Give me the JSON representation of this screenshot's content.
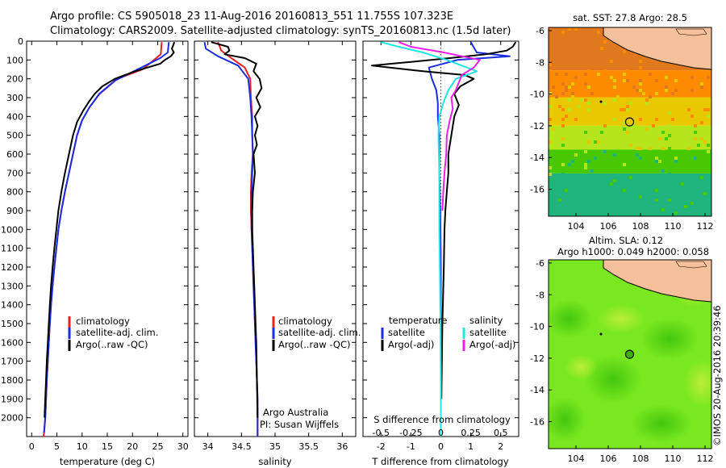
{
  "title": {
    "line1": "Argo profile: CS 5905018_23 11-Aug-2016 20160813_551 11.755S 107.323E",
    "line2": "Climatology: CARS2009. Satellite-adjusted climatology: synTS_20160813.nc (1.5d later)"
  },
  "colors": {
    "climatology": "#e82020",
    "satellite": "#1a2ee0",
    "argo": "#000000",
    "sal_satellite": "#22e4e4",
    "sal_argo": "#e820e8"
  },
  "chart_data": [
    {
      "type": "line",
      "id": "temperature",
      "xlabel": "temperature (deg C)",
      "xlim": [
        -1,
        31
      ],
      "ylim": [
        2100,
        0
      ],
      "xticks": [
        0,
        5,
        10,
        15,
        20,
        25,
        30
      ],
      "yticks": [
        0,
        100,
        200,
        300,
        400,
        500,
        600,
        700,
        800,
        900,
        1000,
        1100,
        1200,
        1300,
        1400,
        1500,
        1600,
        1700,
        1800,
        1900,
        2000
      ],
      "legend": {
        "placement": "lower-center",
        "entries": [
          "climatology",
          "satellite-adj. clim.",
          "Argo(..raw -QC)"
        ]
      },
      "series": [
        {
          "name": "climatology",
          "color": "#e82020",
          "x": [
            25.8,
            25.6,
            22,
            17,
            13.5,
            11.5,
            10,
            9,
            8.2,
            7.4,
            6.6,
            5.9,
            5.3,
            4.9,
            4.5,
            4.15,
            3.85,
            3.6,
            3.4,
            3.2,
            3.0,
            2.85,
            2.7,
            2.55,
            2.45,
            2.35
          ],
          "y": [
            5,
            70,
            150,
            200,
            280,
            350,
            420,
            500,
            600,
            700,
            800,
            900,
            1000,
            1100,
            1200,
            1300,
            1400,
            1500,
            1600,
            1700,
            1800,
            1900,
            2000,
            2050,
            2080,
            2100
          ]
        },
        {
          "name": "satellite-adj. clim.",
          "color": "#1a2ee0",
          "x": [
            27.2,
            27,
            25.5,
            21,
            16.5,
            13.4,
            11.5,
            10,
            9,
            8.2,
            7.4,
            6.6,
            5.9,
            5.3,
            4.9,
            4.5,
            4.15,
            3.85,
            3.6,
            3.4,
            3.2,
            3.0,
            2.85,
            2.7,
            2.55,
            2.45
          ],
          "y": [
            5,
            60,
            90,
            150,
            210,
            280,
            350,
            420,
            500,
            600,
            700,
            800,
            900,
            1000,
            1100,
            1200,
            1300,
            1400,
            1500,
            1600,
            1700,
            1800,
            1900,
            2000,
            2050,
            2080
          ]
        },
        {
          "name": "Argo(..raw -QC)",
          "color": "#000000",
          "x": [
            28.3,
            28.1,
            27.8,
            28.2,
            27.6,
            26.4,
            25.5,
            20.5,
            16.5,
            14,
            12.5,
            11.4,
            10.2,
            9,
            8.2,
            7.4,
            6.6,
            5.9,
            5.3,
            4.9,
            4.5,
            4.15,
            3.85,
            3.6,
            3.4,
            3.2,
            3.0,
            2.85,
            2.7,
            2.55
          ],
          "y": [
            5,
            20,
            40,
            60,
            80,
            100,
            120,
            160,
            200,
            240,
            280,
            320,
            370,
            430,
            500,
            600,
            700,
            800,
            900,
            1000,
            1100,
            1200,
            1300,
            1400,
            1500,
            1600,
            1700,
            1800,
            1900,
            2000
          ]
        }
      ]
    },
    {
      "type": "line",
      "id": "salinity",
      "xlabel": "salinity",
      "xlim": [
        33.8,
        36.2
      ],
      "ylim": [
        2100,
        0
      ],
      "xticks": [
        34,
        34.5,
        35,
        35.5,
        36
      ],
      "legend": {
        "placement": "lower-right",
        "entries": [
          "climatology",
          "satellite-adj. clim.",
          "Argo(..raw -QC)"
        ]
      },
      "annotation": [
        "Argo Australia",
        "PI: Susan Wijffels"
      ],
      "series": [
        {
          "name": "climatology",
          "color": "#e82020",
          "x": [
            34.15,
            34.2,
            34.35,
            34.55,
            34.63,
            34.64,
            34.66,
            34.66,
            34.67,
            34.65,
            34.64,
            34.64,
            34.65,
            34.66,
            34.67,
            34.68,
            34.69,
            34.7,
            34.71,
            34.72,
            34.73,
            34.74,
            34.74
          ],
          "y": [
            5,
            50,
            90,
            140,
            200,
            300,
            400,
            500,
            600,
            700,
            800,
            900,
            1000,
            1100,
            1200,
            1300,
            1400,
            1500,
            1600,
            1700,
            1800,
            1900,
            2100
          ]
        },
        {
          "name": "satellite-adj. clim.",
          "color": "#1a2ee0",
          "x": [
            33.95,
            33.97,
            34.15,
            34.45,
            34.6,
            34.63,
            34.65,
            34.66,
            34.67,
            34.66,
            34.65,
            34.65,
            34.65,
            34.66,
            34.67,
            34.68,
            34.69,
            34.7,
            34.71,
            34.72,
            34.73,
            34.74,
            34.74
          ],
          "y": [
            5,
            40,
            80,
            130,
            200,
            300,
            400,
            500,
            600,
            700,
            800,
            900,
            1000,
            1100,
            1200,
            1300,
            1400,
            1500,
            1600,
            1700,
            1800,
            1900,
            2100
          ]
        },
        {
          "name": "Argo(..raw -QC)",
          "color": "#000000",
          "x": [
            34.05,
            34.3,
            34.32,
            34.25,
            34.55,
            34.72,
            34.68,
            34.77,
            34.8,
            34.72,
            34.78,
            34.7,
            34.74,
            34.7,
            34.73,
            34.68,
            34.7,
            34.67,
            34.66,
            34.66,
            34.67,
            34.68,
            34.69,
            34.7,
            34.71,
            34.72,
            34.73,
            34.74
          ],
          "y": [
            5,
            30,
            50,
            70,
            90,
            120,
            160,
            200,
            250,
            300,
            350,
            400,
            450,
            500,
            550,
            600,
            700,
            800,
            900,
            1000,
            1100,
            1200,
            1300,
            1400,
            1500,
            1600,
            1800,
            2000
          ]
        }
      ]
    },
    {
      "type": "line",
      "id": "difference",
      "xlabel": "T difference from climatology",
      "xlabel_top": "S difference from climatology",
      "xlim": [
        -2.6,
        2.6
      ],
      "ylim": [
        2100,
        0
      ],
      "xticks": [
        -2,
        -1,
        0,
        1,
        2
      ],
      "xticks_top": [
        "-0.5",
        "-0.25",
        "0",
        "0.25",
        "0.5"
      ],
      "legend": {
        "placement": "lower-center",
        "headers": [
          "temperature",
          "salinity"
        ],
        "entries": [
          "satellite",
          "Argo(-adj)",
          "satellite",
          "Argo(-adj)"
        ]
      },
      "series": [
        {
          "name": "satellite",
          "quantity": "temperature",
          "color": "#1a2ee0",
          "x": [
            1.0,
            1.2,
            2.3,
            0.55,
            -0.4,
            -0.3,
            -0.15,
            -0.1,
            -0.1,
            -0.05,
            -0.05,
            -0.02,
            0,
            0,
            0,
            0
          ],
          "y": [
            5,
            60,
            80,
            100,
            140,
            200,
            260,
            330,
            400,
            500,
            700,
            900,
            1200,
            1500,
            1800,
            2100
          ]
        },
        {
          "name": "Argo(-adj)",
          "quantity": "temperature",
          "color": "#000000",
          "x": [
            2.5,
            2.4,
            2.2,
            1.5,
            0.3,
            -1.0,
            -2.3,
            -0.6,
            0.8,
            1.1,
            0.65,
            0.45,
            0.6,
            0.45,
            0.35,
            0.25,
            0.25,
            0.2,
            0.15,
            0.12,
            0.1,
            0.05,
            0.02
          ],
          "y": [
            5,
            30,
            50,
            70,
            90,
            110,
            130,
            160,
            180,
            200,
            240,
            280,
            340,
            400,
            500,
            600,
            700,
            800,
            900,
            1000,
            1200,
            1500,
            1900
          ]
        },
        {
          "name": "satellite",
          "quantity": "salinity",
          "color": "#22e4e4",
          "x": [
            -2.0,
            -1.4,
            -0.6,
            0.2,
            0.7,
            1.2,
            0.5,
            0.25,
            0.1,
            -0.05,
            -0.08,
            -0.05,
            -0.05,
            -0.02,
            0,
            0
          ],
          "y": [
            5,
            30,
            60,
            100,
            130,
            160,
            200,
            260,
            320,
            400,
            500,
            700,
            1000,
            1400,
            1800,
            2100
          ]
        },
        {
          "name": "Argo(-adj)",
          "quantity": "salinity",
          "color": "#e820e8",
          "x": [
            -1.4,
            -1.0,
            0.1,
            1.3,
            1.1,
            0.7,
            0.6,
            0.5,
            0.35,
            0.4,
            0.3,
            0.2,
            0.18,
            0.12,
            0.08,
            0.05
          ],
          "y": [
            5,
            30,
            60,
            100,
            140,
            180,
            220,
            260,
            300,
            360,
            420,
            500,
            600,
            700,
            800,
            900
          ]
        }
      ]
    },
    {
      "type": "heatmap",
      "id": "sst-map",
      "title": "sat. SST: 27.8  Argo: 28.5",
      "xlim": [
        102.3,
        112.4
      ],
      "ylim": [
        -17.7,
        -5.8
      ],
      "xticks": [
        104,
        106,
        108,
        110,
        112
      ],
      "yticks": [
        -6,
        -8,
        -10,
        -12,
        -14,
        -16
      ],
      "argo_position": {
        "lon": 107.323,
        "lat": -11.755,
        "marker_color": "#ff7f00"
      },
      "color_bands": [
        {
          "lat_from": -5.8,
          "lat_to": -8.5,
          "color": "#e0781e"
        },
        {
          "lat_from": -8.5,
          "lat_to": -10.2,
          "color": "#ff8c00"
        },
        {
          "lat_from": -10.2,
          "lat_to": -12,
          "color": "#e8c800"
        },
        {
          "lat_from": -12,
          "lat_to": -13.5,
          "color": "#b5e61d"
        },
        {
          "lat_from": -13.5,
          "lat_to": -15,
          "color": "#48c800"
        },
        {
          "lat_from": -15,
          "lat_to": -17.7,
          "color": "#20b47d"
        }
      ]
    },
    {
      "type": "heatmap",
      "id": "sla-map",
      "title": "Altim. SLA: 0.12",
      "subtitle": "Argo h1000: 0.049 h2000: 0.058",
      "xlim": [
        102.3,
        112.4
      ],
      "ylim": [
        -17.7,
        -5.8
      ],
      "xticks": [
        104,
        106,
        108,
        110,
        112
      ],
      "yticks": [
        -6,
        -8,
        -10,
        -12,
        -14,
        -16
      ],
      "argo_position": {
        "lon": 107.323,
        "lat": -11.755,
        "marker_color": "#40b000"
      },
      "base_color": "#7ae820"
    }
  ],
  "side_stamp": "©IMOS 20-Aug-2016 20:39:46"
}
